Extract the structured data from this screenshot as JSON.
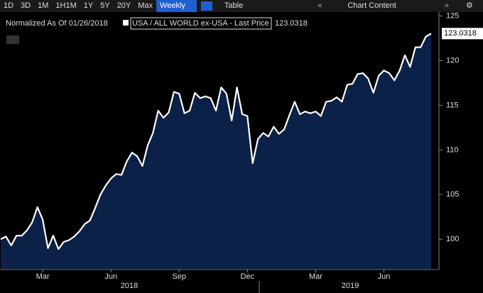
{
  "toolbar": {
    "periods": [
      "1D",
      "3D",
      "1M",
      "1H1M",
      "1Y",
      "5Y",
      "20Y",
      "Max"
    ],
    "frequency": "Weekly",
    "view": "Table",
    "menu": "Chart Content"
  },
  "chart_data": {
    "type": "area",
    "subtitle": "Normalized As Of 01/26/2018",
    "categories": [
      null,
      null,
      null,
      null,
      null,
      null,
      null,
      null,
      "Mar",
      null,
      null,
      null,
      null,
      null,
      null,
      null,
      null,
      null,
      null,
      null,
      null,
      "Jun",
      null,
      null,
      null,
      null,
      null,
      null,
      null,
      null,
      null,
      null,
      null,
      null,
      "Sep",
      null,
      null,
      null,
      null,
      null,
      null,
      null,
      null,
      null,
      null,
      null,
      null,
      "Dec",
      null,
      null,
      null,
      null,
      null,
      null,
      null,
      null,
      null,
      null,
      null,
      null,
      "Mar",
      null,
      null,
      null,
      null,
      null,
      null,
      null,
      null,
      null,
      null,
      null,
      null,
      "Jun",
      null,
      null,
      null,
      null,
      null,
      null,
      null,
      null,
      null
    ],
    "series": [
      {
        "name": "USA / ALL WORLD ex-USA - Last Price",
        "color": "#ffffff",
        "fill": "#0b2148",
        "values": [
          100,
          100.3,
          99.3,
          100.4,
          100.4,
          101.0,
          101.9,
          103.6,
          102.2,
          99.0,
          100.4,
          98.9,
          99.7,
          99.9,
          100.3,
          100.9,
          101.7,
          102.1,
          103.5,
          105.0,
          106.0,
          106.8,
          107.3,
          107.2,
          108.7,
          109.7,
          109.3,
          108.2,
          110.5,
          111.9,
          114.4,
          113.6,
          114.2,
          116.5,
          116.3,
          114.1,
          114.4,
          116.4,
          115.8,
          116.0,
          115.8,
          114.4,
          117.0,
          116.3,
          113.3,
          117.0,
          114.0,
          113.8,
          108.5,
          111.2,
          111.9,
          111.5,
          112.6,
          111.8,
          112.3,
          113.9,
          115.4,
          114.0,
          114.3,
          114.1,
          114.3,
          113.8,
          115.4,
          115.5,
          115.9,
          115.4,
          117.3,
          117.4,
          118.5,
          118.6,
          118.0,
          116.4,
          118.3,
          118.9,
          118.6,
          117.8,
          118.9,
          120.6,
          119.3,
          121.5,
          121.5,
          122.7,
          123.0318
        ]
      }
    ],
    "ylim": [
      96.6,
      125.6
    ],
    "yticks": [
      100,
      105,
      110,
      115,
      120,
      125
    ],
    "year_labels": [
      "2018",
      "2019"
    ],
    "grid": false
  }
}
